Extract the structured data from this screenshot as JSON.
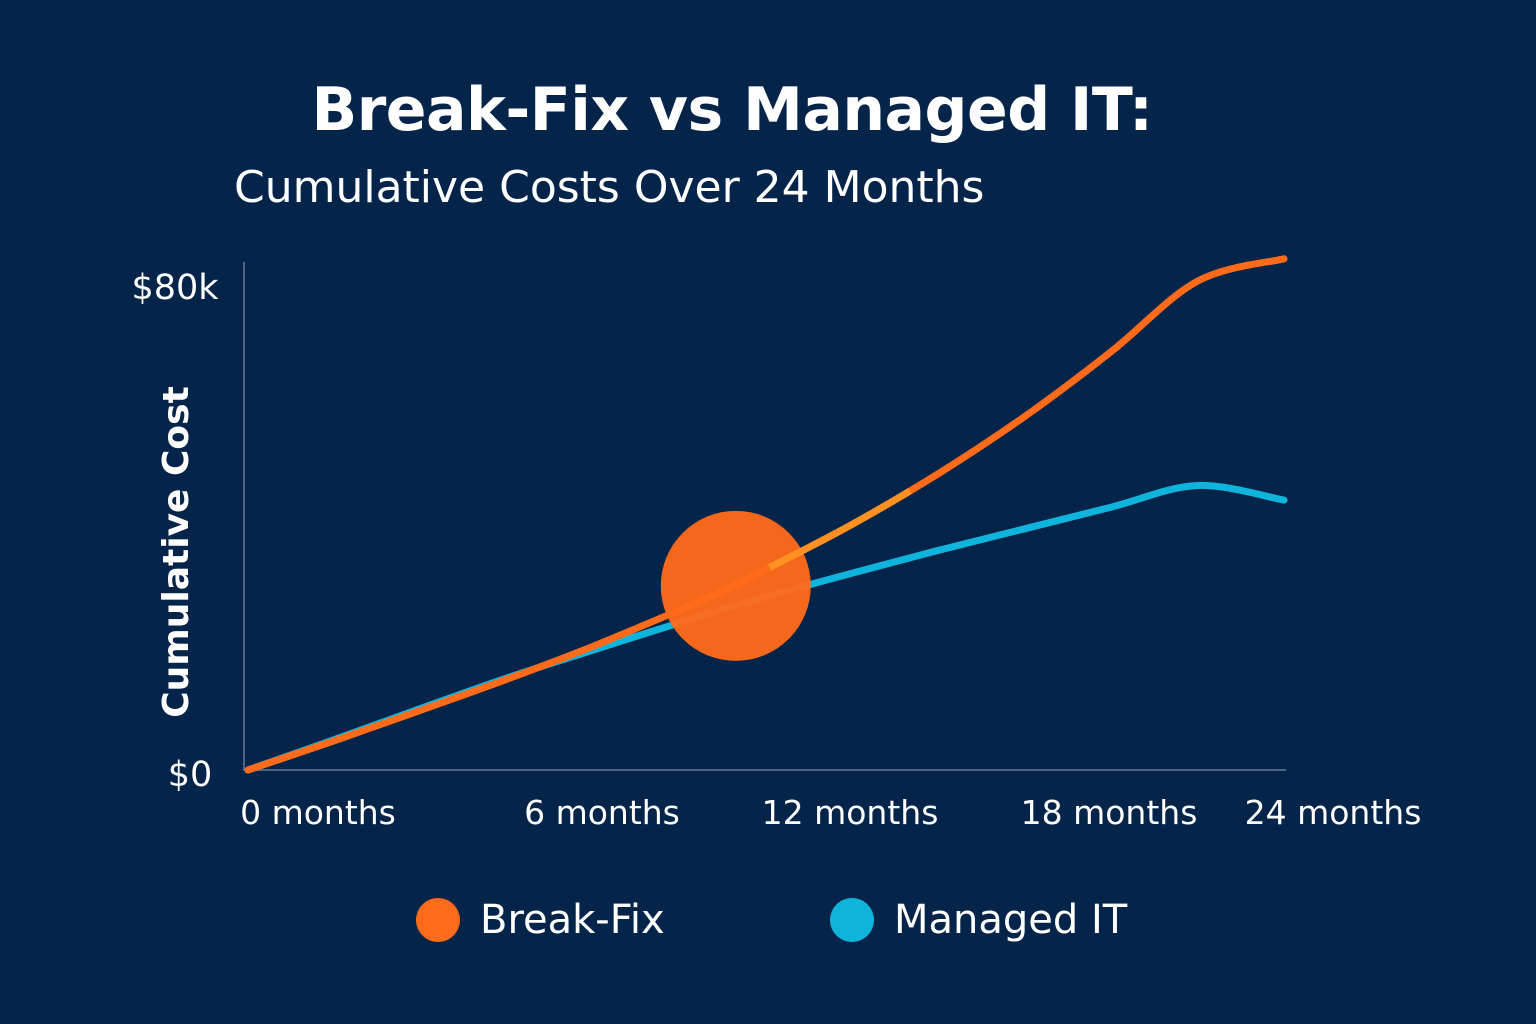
{
  "chart_data": {
    "type": "line",
    "title": "Break-Fix vs Managed IT:",
    "subtitle": "Cumulative Costs Over 24 Months",
    "xlabel": "",
    "ylabel": "Cumulative Cost",
    "x_tick_labels": [
      "0 months",
      "6 months",
      "12 months",
      "18 months",
      "24 months"
    ],
    "y_tick_labels": [
      "$0",
      "$80k"
    ],
    "xlim": [
      0,
      24
    ],
    "ylim": [
      0,
      80000
    ],
    "grid": false,
    "legend_position": "bottom",
    "x": [
      0,
      2,
      4,
      6,
      8,
      10,
      11,
      12,
      14,
      16,
      18,
      20,
      22,
      24
    ],
    "series": [
      {
        "name": "Break-Fix",
        "color": "#FF6B1A",
        "values": [
          0,
          4600,
          9400,
          14300,
          19500,
          25200,
          28200,
          31600,
          38700,
          46700,
          55700,
          65900,
          77000,
          80500
        ]
      },
      {
        "name": "Managed IT",
        "color": "#0FB4DC",
        "values": [
          0,
          4800,
          9700,
          14500,
          18900,
          23200,
          25300,
          27300,
          31000,
          34600,
          38000,
          41400,
          44800,
          42500
        ]
      }
    ],
    "annotation": {
      "type": "marker",
      "x": 11.3,
      "y": 29000,
      "color": "#FF6B1A"
    }
  }
}
